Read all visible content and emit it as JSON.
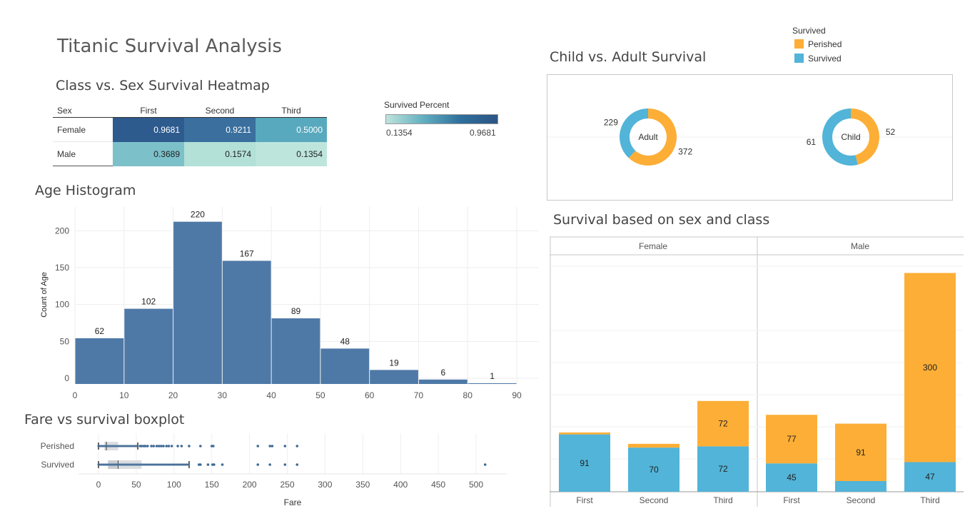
{
  "dashboard": {
    "title": "Titanic Survival Analysis",
    "colors": {
      "perished": "#FDAE36",
      "survived": "#52B4D8",
      "histogram": "#4E79A7",
      "box": "#3E6A95"
    }
  },
  "legend": {
    "title": "Survived",
    "items": [
      {
        "label": "Perished",
        "color": "#FDAE36"
      },
      {
        "label": "Survived",
        "color": "#52B4D8"
      }
    ]
  },
  "heatmap": {
    "title": "Class vs. Sex Survival Heatmap",
    "row_header": "Sex",
    "columns": [
      "First",
      "Second",
      "Third"
    ],
    "rows": [
      {
        "label": "Female",
        "values": [
          "0.9681",
          "0.9211",
          "0.5000"
        ],
        "colors": [
          "#2E5B8E",
          "#3A6F9E",
          "#58A9BE"
        ]
      },
      {
        "label": "Male",
        "values": [
          "0.3689",
          "0.1574",
          "0.1354"
        ],
        "colors": [
          "#7CC0C9",
          "#B3E0D7",
          "#BDE5DC"
        ]
      }
    ],
    "legend_title": "Survived Percent",
    "legend_min": "0.1354",
    "legend_max": "0.9681"
  },
  "chart_data": [
    {
      "type": "bar",
      "title": "Age Histogram",
      "ylabel": "Count of Age",
      "xlabel": "",
      "bins": [
        [
          0,
          10
        ],
        [
          10,
          20
        ],
        [
          20,
          30
        ],
        [
          30,
          40
        ],
        [
          40,
          50
        ],
        [
          50,
          60
        ],
        [
          60,
          70
        ],
        [
          70,
          80
        ],
        [
          80,
          90
        ]
      ],
      "values": [
        62,
        102,
        220,
        167,
        89,
        48,
        19,
        6,
        1
      ],
      "x_ticks": [
        "0",
        "10",
        "20",
        "30",
        "40",
        "50",
        "60",
        "70",
        "80",
        "90"
      ],
      "y_ticks": [
        "0",
        "50",
        "100",
        "150",
        "200"
      ],
      "ylim": [
        0,
        240
      ],
      "xlim": [
        0,
        90
      ]
    },
    {
      "type": "scatter",
      "title": "Fare vs survival boxplot",
      "xlabel": "Fare",
      "x_ticks": [
        "0",
        "50",
        "100",
        "150",
        "200",
        "250",
        "300",
        "350",
        "400",
        "450",
        "500"
      ],
      "xlim": [
        -10,
        540
      ],
      "categories": [
        "Perished",
        "Survived"
      ],
      "boxes": [
        {
          "name": "Perished",
          "min": 0,
          "q1": 8,
          "median": 10.5,
          "q3": 26,
          "max": 52,
          "outliers": [
            55,
            57,
            60,
            62,
            65,
            70,
            73,
            77,
            80,
            83,
            86,
            90,
            93,
            97,
            105,
            110,
            120,
            135,
            150,
            152,
            211,
            227,
            230,
            247,
            263
          ]
        },
        {
          "name": "Survived",
          "min": 0,
          "q1": 12.5,
          "median": 26,
          "q3": 57,
          "max": 120,
          "outliers": [
            133,
            135,
            145,
            151,
            153,
            164,
            211,
            227,
            247,
            263,
            512
          ]
        }
      ]
    },
    {
      "type": "pie",
      "title": "Child vs. Adult Survival",
      "pies": [
        {
          "name": "Adult",
          "values": [
            372,
            229
          ],
          "labels": [
            "Perished",
            "Survived"
          ]
        },
        {
          "name": "Child",
          "values": [
            52,
            61
          ],
          "labels": [
            "Perished",
            "Survived"
          ]
        }
      ]
    },
    {
      "type": "bar",
      "title": "Survival based on sex and class",
      "panels": [
        "Female",
        "Male"
      ],
      "categories": [
        "First",
        "Second",
        "Third"
      ],
      "ylim": [
        0,
        360
      ],
      "series": [
        {
          "name": "Survived",
          "Female": [
            91,
            70,
            72
          ],
          "Male": [
            45,
            17,
            47
          ]
        },
        {
          "name": "Perished",
          "Female": [
            3,
            6,
            72
          ],
          "Male": [
            77,
            91,
            300
          ]
        }
      ],
      "value_labels": {
        "Survived": {
          "Female": [
            "91",
            "70",
            "72"
          ],
          "Male": [
            "45",
            "",
            "47"
          ]
        },
        "Perished": {
          "Female": [
            "",
            "",
            "72"
          ],
          "Male": [
            "77",
            "91",
            "300"
          ]
        }
      }
    }
  ]
}
